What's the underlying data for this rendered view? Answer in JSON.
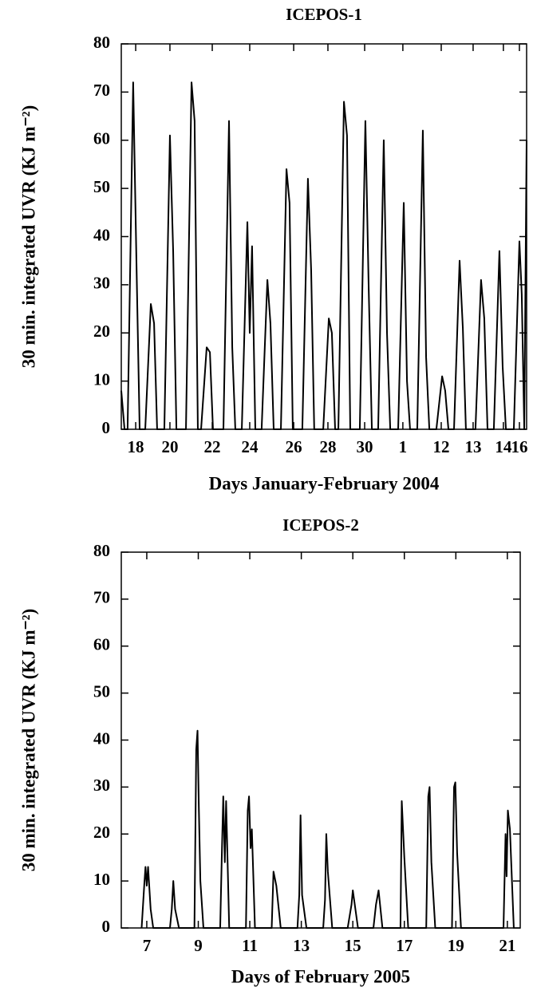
{
  "chart_data": [
    {
      "type": "line",
      "title": "ICEPOS-1",
      "x_label": "Days January-February 2004",
      "y_label": "30 min. integrated UVR (KJ m⁻²)",
      "color": "#000000",
      "x": [
        0,
        0.18,
        0.35,
        0.66,
        0.84,
        1.02,
        1.33,
        1.64,
        1.82,
        1.99,
        2.39,
        2.7,
        2.88,
        3.06,
        3.59,
        3.9,
        4.07,
        4.25,
        4.43,
        4.74,
        4.92,
        5.09,
        5.67,
        5.98,
        6.16,
        6.33,
        6.69,
        7.0,
        7.13,
        7.26,
        7.44,
        7.79,
        8.11,
        8.28,
        8.46,
        8.86,
        9.17,
        9.34,
        9.52,
        10.05,
        10.36,
        10.54,
        10.71,
        11.21,
        11.52,
        11.69,
        11.87,
        12.05,
        12.36,
        12.53,
        12.71,
        13.24,
        13.55,
        13.73,
        13.91,
        14.26,
        14.57,
        14.75,
        14.93,
        15.37,
        15.68,
        15.86,
        16.03,
        16.43,
        16.74,
        16.92,
        17.1,
        17.49,
        17.81,
        17.98,
        18.16,
        18.47,
        18.78,
        18.96,
        19.13,
        19.66,
        19.97,
        20.15,
        20.33,
        20.68,
        20.99,
        21.17,
        21.35,
        21.79,
        22.1,
        22.23,
        22.37,
        22.5
      ],
      "values": [
        8,
        0,
        0,
        72,
        35,
        0,
        0,
        26,
        22,
        0,
        0,
        61,
        37,
        0,
        0,
        72,
        64,
        0,
        0,
        17,
        16,
        0,
        0,
        64,
        17,
        0,
        0,
        43,
        20,
        38,
        0,
        0,
        31,
        22,
        0,
        0,
        54,
        47,
        0,
        0,
        52,
        33,
        0,
        0,
        23,
        20,
        0,
        0,
        68,
        61,
        0,
        0,
        64,
        30,
        0,
        0,
        60,
        20,
        0,
        0,
        47,
        10,
        0,
        0,
        62,
        15,
        0,
        0,
        11,
        8,
        0,
        0,
        35,
        21,
        0,
        0,
        31,
        23,
        0,
        0,
        37,
        13,
        0,
        0,
        39,
        28,
        0,
        60
      ],
      "xlim": [
        0,
        22.5
      ],
      "ylim": [
        0,
        80
      ],
      "yticks": [
        0,
        10,
        20,
        30,
        40,
        50,
        60,
        70,
        80
      ],
      "xticks": [
        {
          "value": 0.8,
          "label": "18"
        },
        {
          "value": 2.7,
          "label": "20"
        },
        {
          "value": 5.05,
          "label": "22"
        },
        {
          "value": 7.13,
          "label": "24"
        },
        {
          "value": 9.57,
          "label": "26"
        },
        {
          "value": 11.47,
          "label": "28"
        },
        {
          "value": 13.51,
          "label": "30"
        },
        {
          "value": 15.63,
          "label": "1"
        },
        {
          "value": 17.76,
          "label": "12"
        },
        {
          "value": 19.53,
          "label": "13"
        },
        {
          "value": 21.21,
          "label": "14"
        },
        {
          "value": 22.1,
          "label": "16"
        }
      ]
    },
    {
      "type": "line",
      "title": "ICEPOS-2",
      "x_label": "Days of February 2005",
      "y_label": "30 min. integrated UVR (KJ m⁻²)",
      "color": "#000000",
      "x": [
        6.8,
        6.9,
        6.95,
        7.0,
        7.05,
        7.15,
        7.25,
        7.9,
        7.97,
        8.03,
        8.1,
        8.25,
        8.85,
        8.92,
        8.97,
        9.02,
        9.08,
        9.2,
        9.85,
        9.92,
        9.97,
        10.03,
        10.08,
        10.2,
        10.85,
        10.92,
        10.97,
        11.03,
        11.08,
        11.2,
        11.85,
        11.92,
        12.03,
        12.2,
        12.85,
        12.92,
        12.97,
        13.03,
        13.2,
        13.85,
        13.92,
        13.97,
        14.03,
        14.2,
        14.8,
        14.95,
        15.0,
        15.2,
        15.8,
        15.9,
        16.0,
        16.15,
        16.85,
        16.9,
        17.0,
        17.15,
        17.85,
        17.93,
        17.98,
        18.05,
        18.2,
        18.85,
        18.93,
        18.98,
        19.05,
        19.2,
        20.85,
        20.93,
        20.97,
        21.02,
        21.1,
        21.25
      ],
      "values": [
        0,
        9,
        13,
        9,
        13,
        4,
        0,
        0,
        4,
        10,
        4,
        0,
        0,
        38,
        42,
        26,
        10,
        0,
        0,
        17,
        28,
        14,
        27,
        0,
        0,
        25,
        28,
        17,
        21,
        0,
        0,
        12,
        9,
        0,
        0,
        7,
        24,
        7,
        0,
        0,
        6,
        20,
        12,
        0,
        0,
        5,
        8,
        0,
        0,
        5,
        8,
        0,
        0,
        27,
        15,
        0,
        0,
        28,
        30,
        14,
        0,
        0,
        30,
        31,
        16,
        0,
        0,
        20,
        11,
        25,
        21,
        0
      ],
      "xlim": [
        6.01,
        21.5
      ],
      "ylim": [
        0,
        80
      ],
      "yticks": [
        0,
        10,
        20,
        30,
        40,
        50,
        60,
        70,
        80
      ],
      "xticks": [
        7,
        9,
        11,
        13,
        15,
        17,
        19,
        21
      ]
    }
  ]
}
